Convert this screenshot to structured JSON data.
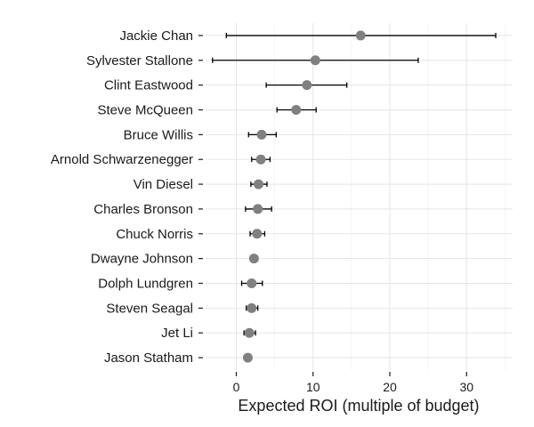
{
  "chart_data": {
    "type": "scatter",
    "title": "",
    "xlabel": "Expected ROI (multiple of budget)",
    "ylabel": "",
    "xlim": [
      -4,
      36
    ],
    "xticks": [
      0,
      10,
      20,
      30
    ],
    "grid": true,
    "point_color": "#808080",
    "errorbar_color": "#000000",
    "categories": [
      "Jackie Chan",
      "Sylvester Stallone",
      "Clint Eastwood",
      "Steve McQueen",
      "Bruce Willis",
      "Arnold Schwarzenegger",
      "Vin Diesel",
      "Charles Bronson",
      "Chuck Norris",
      "Dwayne Johnson",
      "Dolph Lundgren",
      "Steven Seagal",
      "Jet Li",
      "Jason Statham"
    ],
    "values": [
      16.2,
      10.3,
      9.2,
      7.8,
      3.3,
      3.2,
      2.9,
      2.8,
      2.7,
      2.3,
      2.0,
      2.0,
      1.7,
      1.5
    ],
    "lower": [
      -1.3,
      -3.1,
      3.9,
      5.3,
      1.6,
      2.0,
      1.9,
      1.2,
      1.8,
      1.9,
      0.7,
      1.3,
      1.0,
      1.4
    ],
    "upper": [
      33.8,
      23.7,
      14.4,
      10.4,
      5.2,
      4.4,
      4.0,
      4.6,
      3.7,
      2.8,
      3.4,
      2.8,
      2.5,
      1.6
    ]
  }
}
